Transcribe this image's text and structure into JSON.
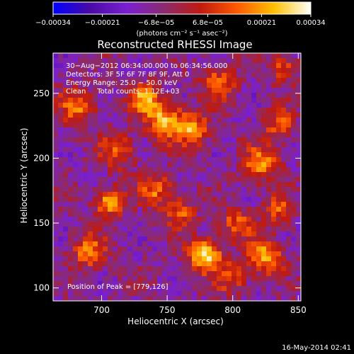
{
  "chart_data": {
    "type": "heatmap",
    "title": "Reconstructed RHESSI Image",
    "xlabel": "Heliocentric X (arcsec)",
    "ylabel": "Heliocentric Y (arcsec)",
    "xlim": [
      663,
      852
    ],
    "ylim": [
      90,
      281
    ],
    "xticks": [
      {
        "value": 700,
        "label": "700"
      },
      {
        "value": 750,
        "label": "750"
      },
      {
        "value": 800,
        "label": "800"
      },
      {
        "value": 850,
        "label": "850"
      }
    ],
    "yticks": [
      {
        "value": 100,
        "label": "100"
      },
      {
        "value": 150,
        "label": "150"
      },
      {
        "value": 200,
        "label": "200"
      },
      {
        "value": 250,
        "label": "250"
      }
    ],
    "colorbar": {
      "min": -0.00034,
      "max": 0.00034,
      "unit_label": "(photons cm⁻² s⁻¹ asec⁻²)",
      "ticks": [
        {
          "value": -0.00034,
          "label": "−0.00034"
        },
        {
          "value": -0.00021,
          "label": "−0.00021"
        },
        {
          "value": -6.8e-05,
          "label": "−6.8e−05"
        },
        {
          "value": 6.8e-05,
          "label": "6.8e−05"
        },
        {
          "value": 0.00021,
          "label": "0.00021"
        },
        {
          "value": 0.00034,
          "label": "0.00034"
        }
      ],
      "colors": [
        "#0000ff",
        "#4a0aa6",
        "#7a1fd1",
        "#8a2b70",
        "#c01a10",
        "#ff5a00",
        "#ffc000",
        "#ffffff"
      ]
    },
    "annotations": [
      "30−Aug−2012 06:34:00.000 to 06:34:56.000",
      "Detectors: 3F 5F 6F 7F 8F 9F, Att 0",
      "Energy Range: 25.0 − 50.0 keV",
      "Clean     Total counts: 1.12E+03"
    ],
    "peak_label": "Position of Peak = [779,126]",
    "peak": [
      779,
      126
    ],
    "sources": [
      {
        "x": 779,
        "y": 126,
        "amp": 1.0,
        "sigma": 9
      },
      {
        "x": 748,
        "y": 229,
        "amp": 0.85,
        "sigma": 10
      },
      {
        "x": 733,
        "y": 245,
        "amp": 0.75,
        "sigma": 8
      },
      {
        "x": 770,
        "y": 222,
        "amp": 0.75,
        "sigma": 9
      },
      {
        "x": 706,
        "y": 166,
        "amp": 0.8,
        "sigma": 8
      },
      {
        "x": 826,
        "y": 124,
        "amp": 0.85,
        "sigma": 9
      },
      {
        "x": 822,
        "y": 196,
        "amp": 0.7,
        "sigma": 10
      },
      {
        "x": 836,
        "y": 226,
        "amp": 0.6,
        "sigma": 8
      },
      {
        "x": 690,
        "y": 128,
        "amp": 0.65,
        "sigma": 9
      },
      {
        "x": 682,
        "y": 240,
        "amp": 0.6,
        "sigma": 10
      },
      {
        "x": 790,
        "y": 258,
        "amp": 0.6,
        "sigma": 9
      },
      {
        "x": 838,
        "y": 270,
        "amp": 0.5,
        "sigma": 8
      },
      {
        "x": 742,
        "y": 175,
        "amp": 0.6,
        "sigma": 9
      },
      {
        "x": 760,
        "y": 158,
        "amp": 0.55,
        "sigma": 8
      },
      {
        "x": 803,
        "y": 150,
        "amp": 0.55,
        "sigma": 9
      },
      {
        "x": 712,
        "y": 205,
        "amp": 0.5,
        "sigma": 10
      },
      {
        "x": 835,
        "y": 160,
        "amp": 0.55,
        "sigma": 8
      },
      {
        "x": 800,
        "y": 108,
        "amp": 0.5,
        "sigma": 9
      }
    ],
    "grid": false
  },
  "footer": {
    "timestamp": "16-May-2014 02:41"
  }
}
